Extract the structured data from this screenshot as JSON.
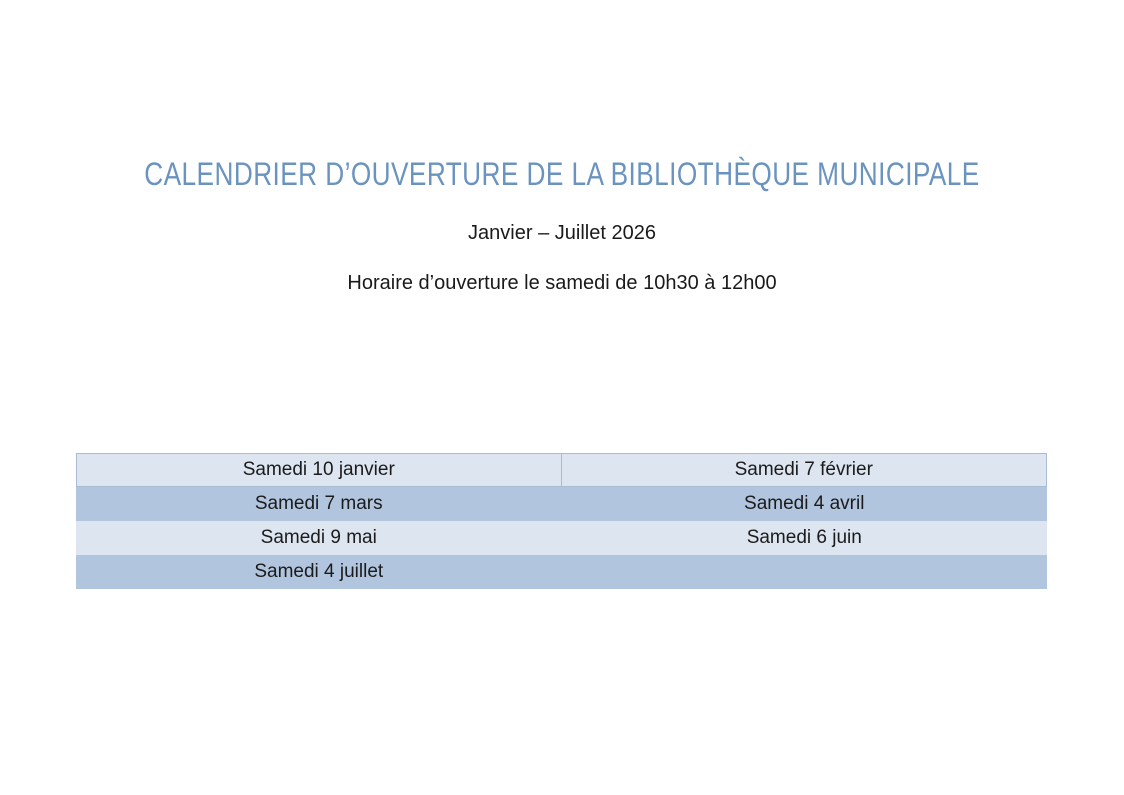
{
  "title": {
    "text": "CALENDRIER D’OUVERTURE DE LA BIBLIOTHÈQUE MUNICIPALE",
    "color": "#6b93bf"
  },
  "subtitle": "Janvier – Juillet 2026",
  "hours_line": "Horaire d’ouverture le samedi de 10h30 à 12h00",
  "table": {
    "rows": [
      {
        "variant": "light",
        "cells": [
          "Samedi 10 janvier",
          "Samedi 7 février"
        ]
      },
      {
        "variant": "dark",
        "cells": [
          "Samedi 7 mars",
          "Samedi 4 avril"
        ]
      },
      {
        "variant": "light",
        "cells": [
          "Samedi 9 mai",
          "Samedi 6 juin"
        ]
      },
      {
        "variant": "dark",
        "cells": [
          "Samedi 4 juillet",
          ""
        ]
      }
    ],
    "colors": {
      "row_light": "#dce5f0",
      "row_dark": "#b2c5de",
      "header_border": "#a9bcd4",
      "text": "#1b1b1b"
    }
  }
}
